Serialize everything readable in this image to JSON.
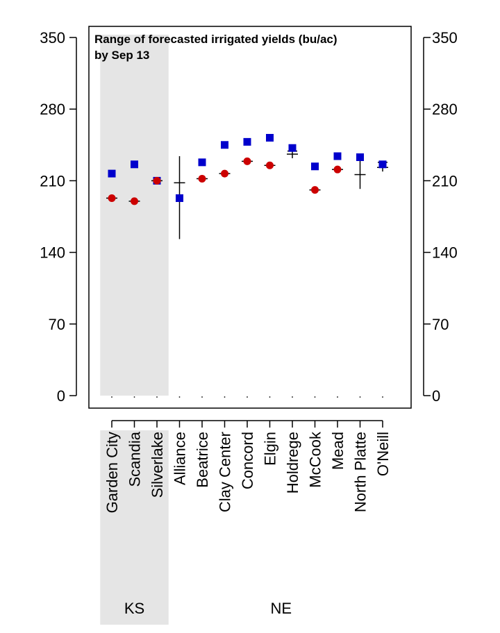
{
  "chart_data": {
    "type": "scatter",
    "title": "Range of forecasted irrigated yields (bu/ac)",
    "subtitle": "by Sep 13",
    "categories": [
      "Garden City",
      "Scandia",
      "Silverlake",
      "Alliance",
      "Beatrice",
      "Clay Center",
      "Concord",
      "Elgin",
      "Holdrege",
      "McCook",
      "Mead",
      "North Platte",
      "O'Neill"
    ],
    "groups": [
      {
        "name": "KS",
        "categories": [
          "Garden City",
          "Scandia",
          "Silverlake"
        ],
        "shaded": true
      },
      {
        "name": "NE",
        "categories": [
          "Alliance",
          "Beatrice",
          "Clay Center",
          "Concord",
          "Elgin",
          "Holdrege",
          "McCook",
          "Mead",
          "North Platte",
          "O'Neill"
        ],
        "shaded": false
      }
    ],
    "ylim": [
      0,
      350
    ],
    "yticks": [
      0,
      70,
      140,
      210,
      280,
      350
    ],
    "right_axis_ticks": [
      0,
      70,
      140,
      210,
      280,
      350
    ],
    "series": [
      {
        "marker": "square",
        "color": "#0000cc",
        "values": [
          217,
          226,
          210,
          193,
          228,
          245,
          248,
          252,
          242,
          224,
          234,
          233,
          226
        ]
      },
      {
        "marker": "circle",
        "color": "#cc0000",
        "values": [
          193,
          190,
          210,
          null,
          212,
          217,
          229,
          225,
          null,
          201,
          221,
          null,
          null
        ]
      }
    ],
    "ranges": [
      {
        "low": 193,
        "high": 193,
        "median": 193
      },
      {
        "low": 190,
        "high": 190,
        "median": 190
      },
      {
        "low": 210,
        "high": 210,
        "median": 210
      },
      {
        "low": 153,
        "high": 234,
        "median": 208
      },
      {
        "low": 212,
        "high": 212,
        "median": 212
      },
      {
        "low": 217,
        "high": 217,
        "median": 217
      },
      {
        "low": 229,
        "high": 229,
        "median": 229
      },
      {
        "low": 225,
        "high": 225,
        "median": 225
      },
      {
        "low": 232,
        "high": 239,
        "median": 236
      },
      {
        "low": 201,
        "high": 201,
        "median": 201
      },
      {
        "low": 221,
        "high": 221,
        "median": 221
      },
      {
        "low": 202,
        "high": 235,
        "median": 216
      },
      {
        "low": 219,
        "high": 228,
        "median": 223
      }
    ],
    "grid": false,
    "shade_color": "#e5e5e5"
  }
}
